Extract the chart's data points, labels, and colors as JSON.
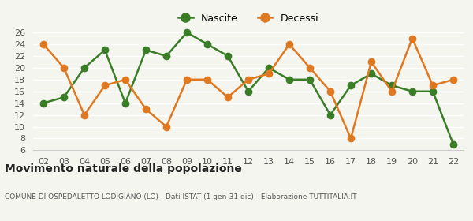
{
  "years": [
    "02",
    "03",
    "04",
    "05",
    "06",
    "07",
    "08",
    "09",
    "10",
    "11",
    "12",
    "13",
    "14",
    "15",
    "16",
    "17",
    "18",
    "19",
    "20",
    "21",
    "22"
  ],
  "nascite": [
    14,
    15,
    20,
    23,
    14,
    23,
    22,
    26,
    24,
    22,
    16,
    20,
    18,
    18,
    12,
    17,
    19,
    17,
    16,
    16,
    7
  ],
  "decessi": [
    24,
    20,
    12,
    17,
    18,
    13,
    10,
    18,
    18,
    15,
    18,
    19,
    24,
    20,
    16,
    8,
    21,
    16,
    25,
    17,
    18
  ],
  "nascite_color": "#3a7d27",
  "decessi_color": "#e07820",
  "background_color": "#f5f5f0",
  "grid_color": "#ffffff",
  "ylim": [
    6,
    27
  ],
  "yticks": [
    6,
    8,
    10,
    12,
    14,
    16,
    18,
    20,
    22,
    24,
    26
  ],
  "title": "Movimento naturale della popolazione",
  "subtitle": "COMUNE DI OSPEDALETTO LODIGIANO (LO) - Dati ISTAT (1 gen-31 dic) - Elaborazione TUTTITALIA.IT",
  "legend_nascite": "Nascite",
  "legend_decessi": "Decessi",
  "marker_size": 6,
  "line_width": 1.8
}
